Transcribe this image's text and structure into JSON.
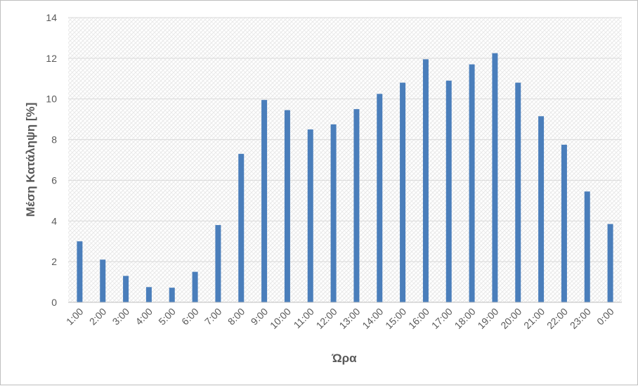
{
  "chart_data": {
    "type": "bar",
    "title": "",
    "xlabel": "Ώρα",
    "ylabel": "Μέση Κατάληψη [%]",
    "ylim": [
      0,
      14
    ],
    "yticks": [
      0,
      2,
      4,
      6,
      8,
      10,
      12,
      14
    ],
    "grid": true,
    "legend": "none",
    "categories": [
      "1:00",
      "2:00",
      "3:00",
      "4:00",
      "5:00",
      "6:00",
      "7:00",
      "8:00",
      "9:00",
      "10:00",
      "11:00",
      "12:00",
      "13:00",
      "14:00",
      "15:00",
      "16:00",
      "17:00",
      "18:00",
      "19:00",
      "20:00",
      "21:00",
      "22:00",
      "23:00",
      "0:00"
    ],
    "values": [
      3.0,
      2.1,
      1.3,
      0.75,
      0.72,
      1.5,
      3.8,
      7.3,
      9.95,
      9.45,
      8.5,
      8.75,
      9.5,
      10.25,
      10.8,
      11.95,
      10.9,
      11.7,
      12.25,
      10.8,
      9.15,
      7.75,
      5.45,
      3.85
    ],
    "colors": {
      "bar": "#4a7ebb",
      "grid": "#d9d9d9",
      "axis": "#bfbfbf",
      "text": "#595959"
    }
  }
}
